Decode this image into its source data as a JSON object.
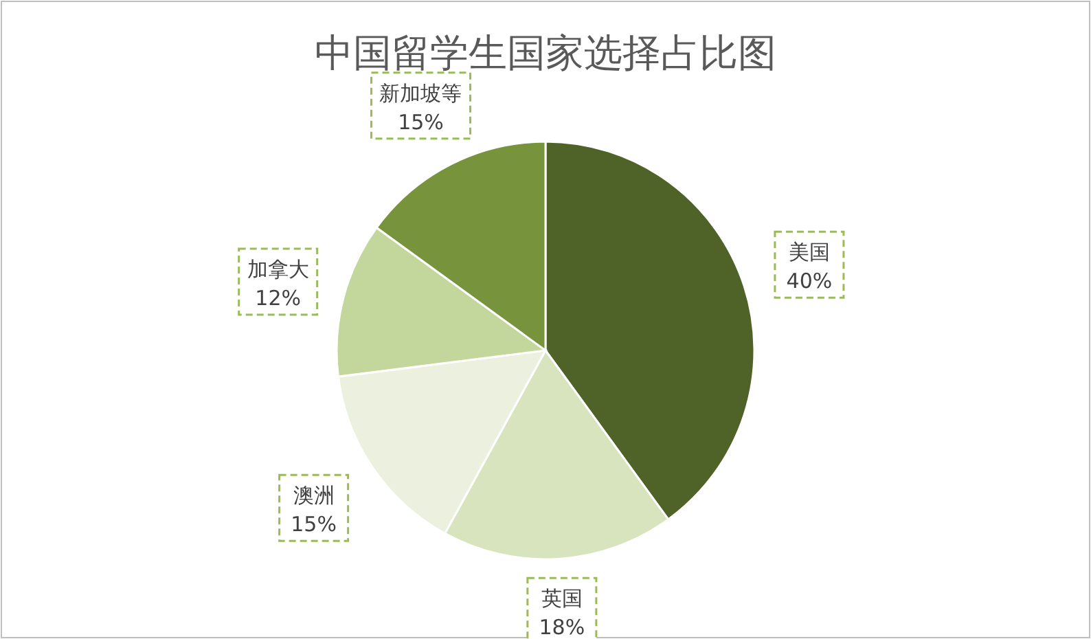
{
  "chart_data": {
    "type": "pie",
    "title": "中国留学生国家选择占比图",
    "categories": [
      "美国",
      "英国",
      "澳洲",
      "加拿大",
      "新加坡等"
    ],
    "values": [
      40,
      18,
      15,
      12,
      15
    ],
    "colors": [
      "#4f6228",
      "#d7e4bd",
      "#ebf1de",
      "#c3d69b",
      "#77933c"
    ],
    "value_labels": [
      "40%",
      "18%",
      "15%",
      "12%",
      "15%"
    ],
    "legend": false
  }
}
